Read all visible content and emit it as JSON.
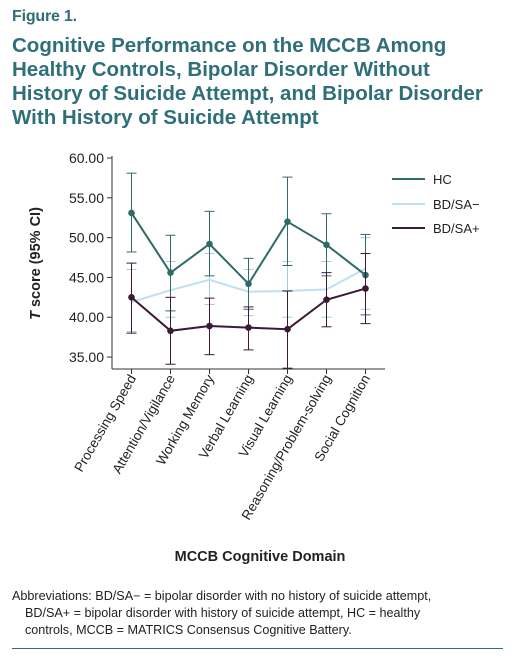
{
  "figure": {
    "label": "Figure 1.",
    "title_lines": [
      "Cognitive Performance on the MCCB Among",
      "Healthy Controls, Bipolar Disorder Without",
      "History of Suicide Attempt, and Bipolar Disorder",
      "With History of Suicide Attempt"
    ],
    "footnote_lines": [
      "Abbreviations: BD/SA− = bipolar disorder with no history of suicide attempt,",
      "BD/SA+ = bipolar disorder with history of suicide attempt, HC = healthy",
      "controls, MCCB = MATRICS Consensus Cognitive Battery."
    ]
  },
  "chart_data": {
    "type": "line",
    "title": "",
    "xlabel": "MCCB Cognitive Domain",
    "ylabel": "T score (95% CI)",
    "ylabel_italic_part": "T",
    "ylim": [
      33.5,
      60.0
    ],
    "yticks": [
      35.0,
      40.0,
      45.0,
      50.0,
      55.0,
      60.0
    ],
    "ytick_labels": [
      "35.00",
      "40.00",
      "45.00",
      "50.00",
      "55.00",
      "60.00"
    ],
    "grid": false,
    "legend_position": "right",
    "categories": [
      "Processing Speed",
      "Attention/Vigilance",
      "Working Memory",
      "Verbal Learning",
      "Visual Learning",
      "Reasoning/Problem-solving",
      "Social Cognition"
    ],
    "series": [
      {
        "name": "HC",
        "color": "#2e6b68",
        "marker": "circle",
        "values": [
          53.1,
          45.6,
          49.2,
          44.2,
          52.0,
          49.1,
          45.3
        ],
        "ci_low": [
          48.2,
          40.8,
          45.2,
          41.0,
          46.5,
          45.2,
          40.3
        ],
        "ci_high": [
          58.1,
          50.3,
          53.3,
          47.4,
          57.6,
          53.0,
          50.4
        ]
      },
      {
        "name": "BD/SA−",
        "color": "#bfe0f4",
        "marker": "none",
        "values": [
          41.9,
          43.4,
          44.7,
          43.2,
          43.3,
          43.5,
          46.1
        ],
        "ci_low": [
          38.2,
          40.0,
          41.6,
          40.2,
          40.0,
          40.0,
          41.0
        ],
        "ci_high": [
          46.0,
          47.0,
          48.0,
          46.0,
          47.0,
          47.0,
          50.0
        ]
      },
      {
        "name": "BD/SA+",
        "color": "#3a1a34",
        "marker": "circle",
        "values": [
          42.5,
          38.3,
          38.9,
          38.7,
          38.5,
          42.2,
          43.6
        ],
        "ci_low": [
          38.0,
          34.1,
          35.3,
          35.9,
          33.6,
          38.8,
          39.2
        ],
        "ci_high": [
          46.8,
          42.5,
          42.4,
          41.3,
          43.3,
          45.6,
          48.0
        ]
      }
    ]
  }
}
